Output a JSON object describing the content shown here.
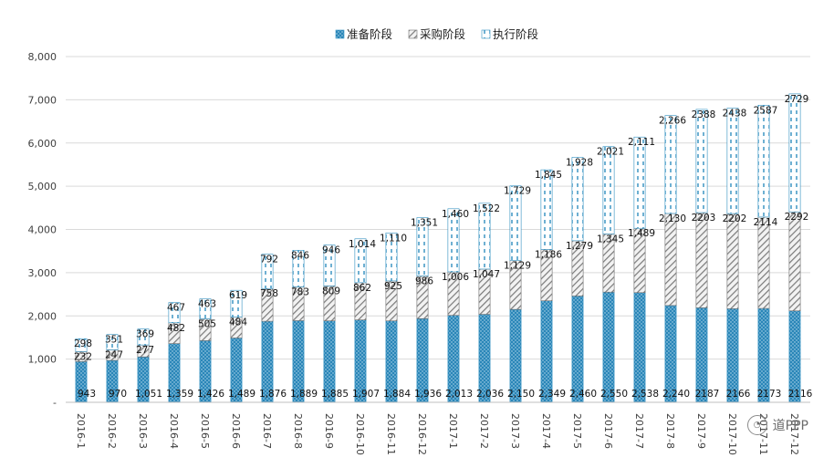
{
  "chart_data": {
    "type": "bar",
    "stacked": true,
    "title": "",
    "xlabel": "",
    "ylabel": "",
    "ylim": [
      0,
      8000
    ],
    "yticks": [
      0,
      1000,
      2000,
      3000,
      4000,
      5000,
      6000,
      7000,
      8000
    ],
    "ytick_labels": [
      "-",
      "1,000",
      "2,000",
      "3,000",
      "4,000",
      "5,000",
      "6,000",
      "7,000",
      "8,000"
    ],
    "grid": true,
    "legend_position": "top",
    "categories": [
      "2016-1",
      "2016-2",
      "2016-3",
      "2016-4",
      "2016-5",
      "2016-6",
      "2016-7",
      "2016-8",
      "2016-9",
      "2016-10",
      "2016-11",
      "2016-12",
      "2017-1",
      "2017-2",
      "2017-3",
      "2017-4",
      "2017-5",
      "2017-6",
      "2017-7",
      "2017-8",
      "2017-9",
      "2017-10",
      "2017-11",
      "2017-12"
    ],
    "series": [
      {
        "name": "准备阶段",
        "pattern": "dots",
        "color": "#2f8fc0",
        "values": [
          943,
          970,
          1051,
          1359,
          1426,
          1489,
          1876,
          1889,
          1885,
          1907,
          1884,
          1936,
          2013,
          2036,
          2150,
          2349,
          2460,
          2550,
          2538,
          2240,
          2187,
          2166,
          2173,
          2116
        ],
        "labels": [
          "943",
          "970",
          "1,051",
          "1,359",
          "1,426",
          "1,489",
          "1,876",
          "1,889",
          "1,885",
          "1,907",
          "1,884",
          "1,936",
          "2,013",
          "2,036",
          "2,150",
          "2,349",
          "2,460",
          "2,550",
          "2,538",
          "2,240",
          "2187",
          "2166",
          "2173",
          "2116"
        ]
      },
      {
        "name": "采购阶段",
        "pattern": "hatch",
        "color": "#6e6e6e",
        "values": [
          232,
          247,
          277,
          482,
          505,
          484,
          758,
          783,
          809,
          862,
          925,
          986,
          1006,
          1047,
          1129,
          1186,
          1279,
          1345,
          1489,
          2130,
          2203,
          2202,
          2114,
          2292
        ],
        "labels": [
          "232",
          "247",
          "277",
          "482",
          "505",
          "484",
          "758",
          "783",
          "809",
          "862",
          "925",
          "986",
          "1,006",
          "1,047",
          "1,129",
          "1,186",
          "1,279",
          "1,345",
          "1,489",
          "2,130",
          "2203",
          "2202",
          "2114",
          "2292"
        ]
      },
      {
        "name": "执行阶段",
        "pattern": "dash",
        "color": "#2f8fc0",
        "values": [
          298,
          351,
          369,
          467,
          463,
          619,
          792,
          846,
          946,
          1014,
          1110,
          1351,
          1460,
          1522,
          1729,
          1845,
          1928,
          2021,
          2111,
          2266,
          2388,
          2438,
          2587,
          2729
        ],
        "labels": [
          "298",
          "351",
          "369",
          "467",
          "463",
          "619",
          "792",
          "846",
          "946",
          "1,014",
          "1,110",
          "1,351",
          "1,460",
          "1,522",
          "1,729",
          "1,845",
          "1,928",
          "2,021",
          "2,111",
          "2,266",
          "2388",
          "2438",
          "2587",
          "2729"
        ]
      }
    ]
  },
  "watermark": {
    "icon": "wechat-icon",
    "text": "道PPP"
  }
}
